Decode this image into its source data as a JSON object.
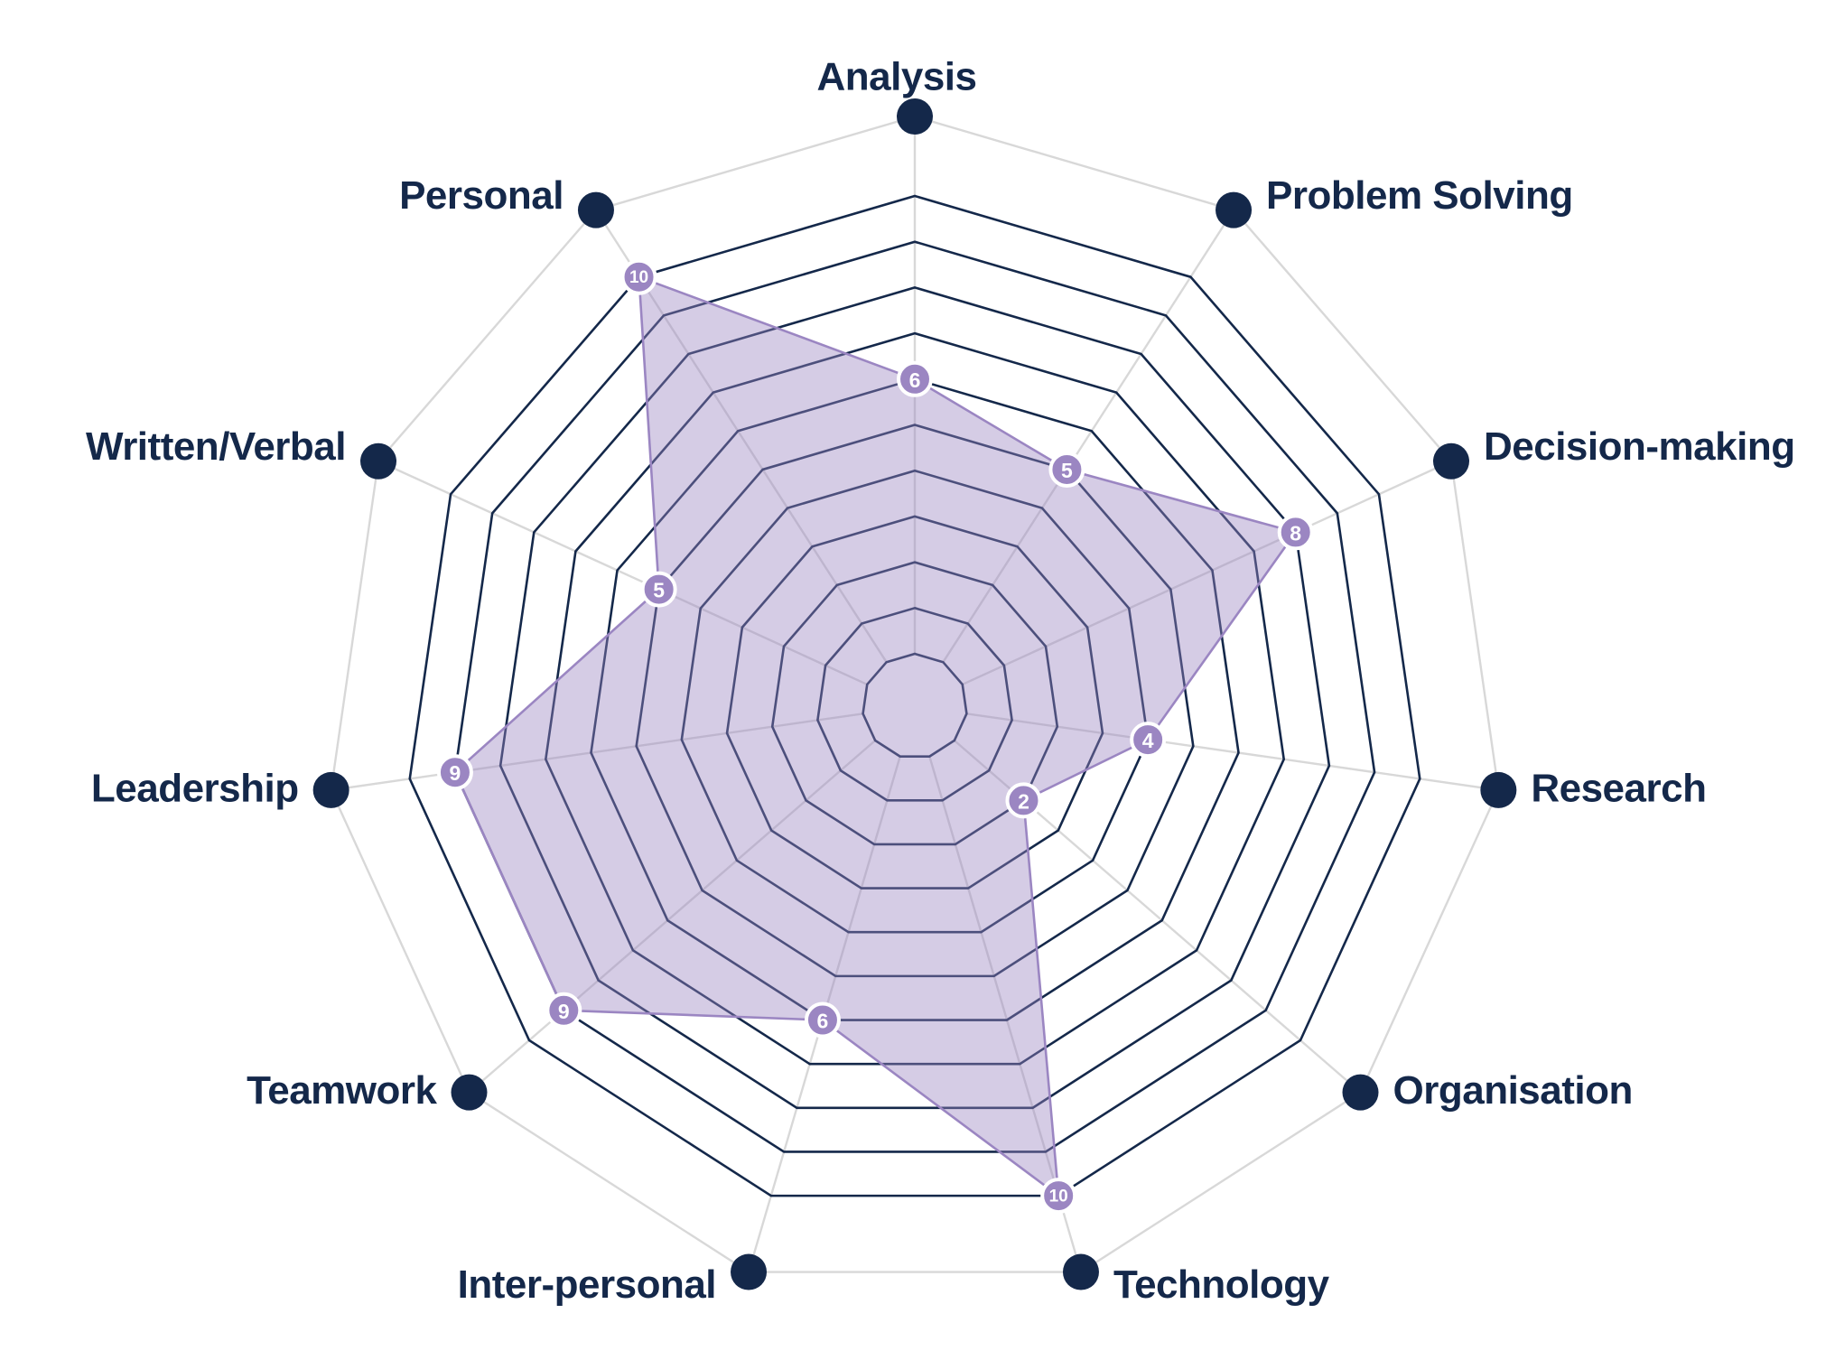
{
  "chart_data": {
    "type": "radar",
    "categories": [
      "Analysis",
      "Problem Solving",
      "Decision-making",
      "Research",
      "Organisation",
      "Technology",
      "Inter-personal",
      "Teamwork",
      "Leadership",
      "Written/Verbal",
      "Personal"
    ],
    "series": [
      {
        "values": [
          6,
          5,
          8,
          4,
          2,
          10,
          6,
          9,
          9,
          5,
          10
        ]
      }
    ],
    "rlim": [
      0,
      10
    ],
    "rings": [
      1,
      2,
      3,
      4,
      5,
      6,
      7,
      8,
      9,
      10
    ],
    "colors": {
      "ring": "#14284a",
      "spoke": "#d8d8d8",
      "fill": "#9b86c2",
      "fill_opacity": 0.42,
      "series_line": "#9b86c2",
      "marker": "#9b86c2",
      "marker_stroke": "#ffffff",
      "axis_dot": "#14284a",
      "label": "#14284a"
    }
  }
}
